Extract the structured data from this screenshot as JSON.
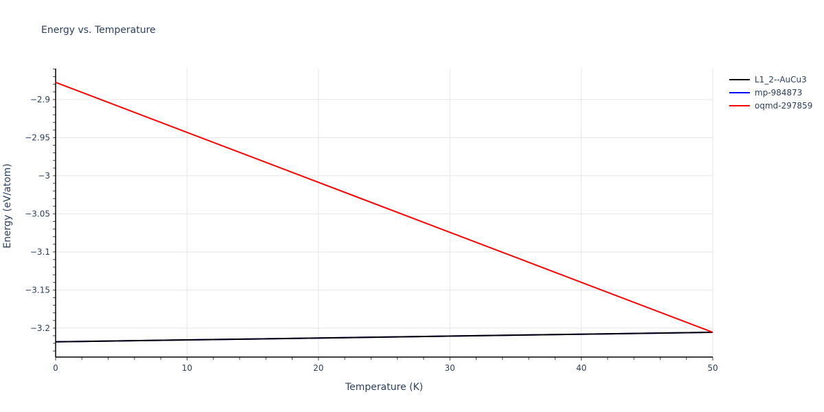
{
  "chart_data": {
    "type": "line",
    "title": "Energy vs. Temperature",
    "xlabel": "Temperature (K)",
    "ylabel": "Energy (eV/atom)",
    "xlim": [
      0,
      50
    ],
    "ylim": [
      -3.238,
      -2.8595
    ],
    "xticks": [
      "0",
      "10",
      "20",
      "30",
      "40",
      "50"
    ],
    "yticks": [
      "−2.9",
      "−2.95",
      "−3",
      "−3.05",
      "−3.1",
      "−3.15",
      "−3.2"
    ],
    "grid": true,
    "legend_position": "top-right-outside",
    "series": [
      {
        "name": "L1_2--AuCu3",
        "color": "#000000",
        "x": [
          0,
          50
        ],
        "y": [
          -3.218,
          -3.2055
        ]
      },
      {
        "name": "mp-984873",
        "color": "#0000ff",
        "x": [
          0,
          50
        ],
        "y": [
          -3.218,
          -3.2055
        ]
      },
      {
        "name": "oqmd-297859",
        "color": "#ff0000",
        "x": [
          0,
          50
        ],
        "y": [
          -2.8775,
          -3.2055
        ]
      }
    ]
  },
  "legend": {
    "items": [
      {
        "label": "L1_2--AuCu3",
        "color": "#000000"
      },
      {
        "label": "mp-984873",
        "color": "#0000ff"
      },
      {
        "label": "oqmd-297859",
        "color": "#ff0000"
      }
    ]
  }
}
